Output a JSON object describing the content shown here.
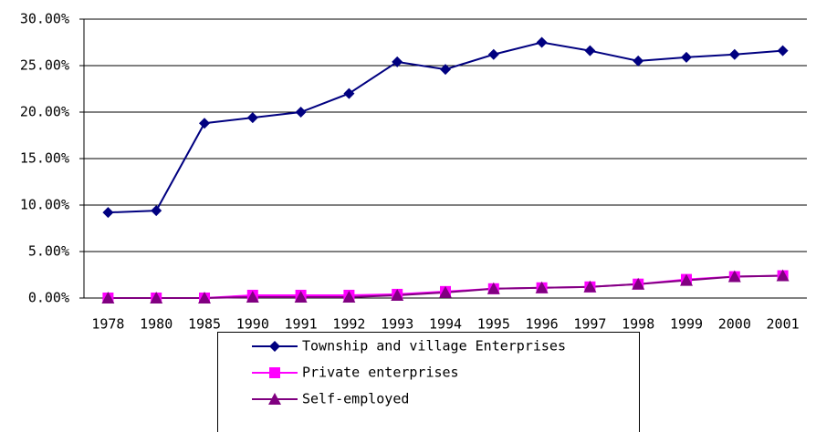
{
  "chart_data": {
    "type": "line",
    "categories": [
      "1978",
      "1980",
      "1985",
      "1990",
      "1991",
      "1992",
      "1993",
      "1994",
      "1995",
      "1996",
      "1997",
      "1998",
      "1999",
      "2000",
      "2001"
    ],
    "series": [
      {
        "name": "Township and village Enterprises",
        "color": "#000080",
        "marker": "diamond",
        "values": [
          9.2,
          9.4,
          18.8,
          19.4,
          20.0,
          22.0,
          25.4,
          24.6,
          26.2,
          27.5,
          26.6,
          25.5,
          25.9,
          26.2,
          26.6
        ]
      },
      {
        "name": "Private enterprises",
        "color": "#ff00ff",
        "marker": "square",
        "values": [
          0,
          0,
          0,
          0.3,
          0.3,
          0.3,
          0.4,
          0.7,
          1.0,
          1.1,
          1.2,
          1.5,
          2.0,
          2.3,
          2.4
        ]
      },
      {
        "name": "Self-employed",
        "color": "#800080",
        "marker": "triangle",
        "values": [
          0,
          0,
          0,
          0.1,
          0.1,
          0.1,
          0.3,
          0.6,
          1.0,
          1.1,
          1.2,
          1.5,
          1.9,
          2.3,
          2.4
        ]
      }
    ],
    "ylim": [
      0,
      30
    ],
    "yticks": [
      {
        "value": 0,
        "label": "0.00%"
      },
      {
        "value": 5,
        "label": "5.00%"
      },
      {
        "value": 10,
        "label": "10.00%"
      },
      {
        "value": 15,
        "label": "15.00%"
      },
      {
        "value": 20,
        "label": "20.00%"
      },
      {
        "value": 25,
        "label": "25.00%"
      },
      {
        "value": 30,
        "label": "30.00%"
      }
    ],
    "grid": true,
    "legend": "bottom"
  }
}
